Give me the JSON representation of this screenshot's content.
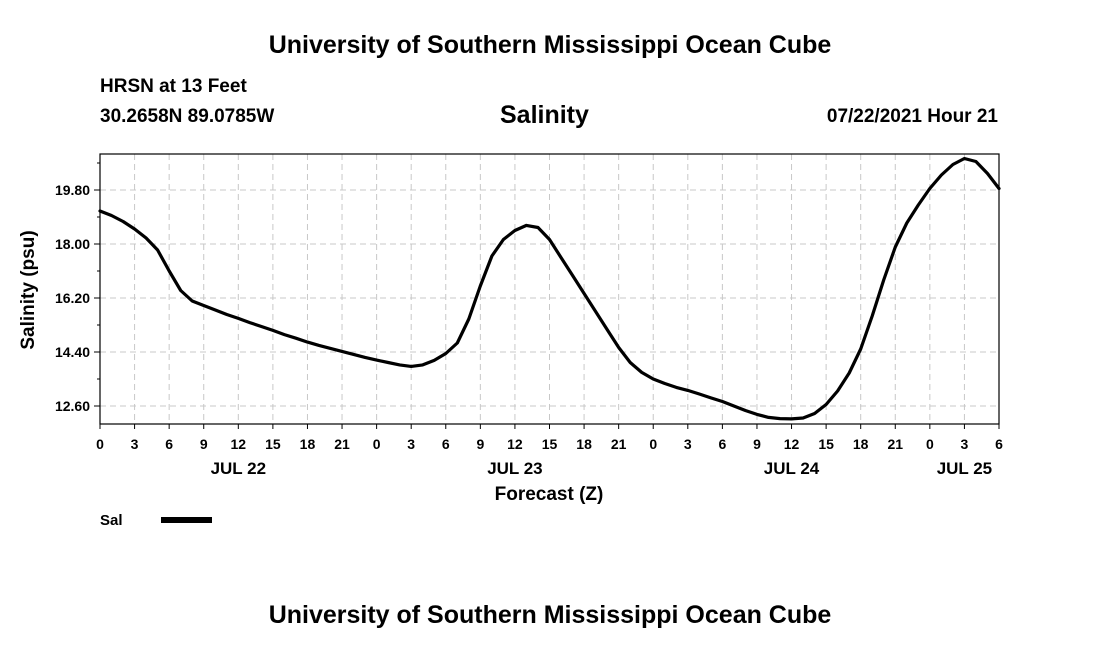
{
  "header": {
    "title": "University of Southern Mississippi Ocean Cube",
    "station": "HRSN at 13 Feet",
    "coords": "30.2658N  89.0785W",
    "datetime": "07/22/2021 Hour 21"
  },
  "footer": {
    "title": "University of Southern Mississippi Ocean Cube"
  },
  "legend": {
    "label": "Sal"
  },
  "colors": {
    "line": "#000000",
    "grid": "#c8c8c8",
    "axis": "#000000"
  },
  "chart_data": {
    "type": "line",
    "title": "Salinity",
    "xlabel": "Forecast (Z)",
    "ylabel": "Salinity (psu)",
    "xlim": [
      0,
      78
    ],
    "ylim": [
      12.0,
      21.0
    ],
    "x_ticks": [
      0,
      3,
      6,
      9,
      12,
      15,
      18,
      21,
      24,
      27,
      30,
      33,
      36,
      39,
      42,
      45,
      48,
      51,
      54,
      57,
      60,
      63,
      66,
      69,
      72,
      75,
      78
    ],
    "x_tick_labels": [
      "0",
      "3",
      "6",
      "9",
      "12",
      "15",
      "18",
      "21",
      "0",
      "3",
      "6",
      "9",
      "12",
      "15",
      "18",
      "21",
      "0",
      "3",
      "6",
      "9",
      "12",
      "15",
      "18",
      "21",
      "0",
      "3",
      "6"
    ],
    "day_labels": [
      {
        "x": 12,
        "label": "JUL 22"
      },
      {
        "x": 36,
        "label": "JUL 23"
      },
      {
        "x": 60,
        "label": "JUL 24"
      },
      {
        "x": 75,
        "label": "JUL 25"
      }
    ],
    "y_ticks": [
      12.6,
      14.4,
      16.2,
      18.0,
      19.8
    ],
    "y_tick_labels": [
      "12.60",
      "14.40",
      "16.20",
      "18.00",
      "19.80"
    ],
    "series": [
      {
        "name": "Sal",
        "x": [
          0,
          1,
          2,
          3,
          4,
          5,
          6,
          7,
          8,
          9,
          10,
          11,
          12,
          13,
          14,
          15,
          16,
          17,
          18,
          19,
          20,
          21,
          22,
          23,
          24,
          25,
          26,
          27,
          28,
          29,
          30,
          31,
          32,
          33,
          34,
          35,
          36,
          37,
          38,
          39,
          40,
          41,
          42,
          43,
          44,
          45,
          46,
          47,
          48,
          49,
          50,
          51,
          52,
          53,
          54,
          55,
          56,
          57,
          58,
          59,
          60,
          61,
          62,
          63,
          64,
          65,
          66,
          67,
          68,
          69,
          70,
          71,
          72,
          73,
          74,
          75,
          76,
          77,
          78
        ],
        "values": [
          19.1,
          18.95,
          18.75,
          18.5,
          18.2,
          17.8,
          17.1,
          16.45,
          16.1,
          15.95,
          15.8,
          15.65,
          15.52,
          15.38,
          15.25,
          15.12,
          14.98,
          14.86,
          14.73,
          14.62,
          14.52,
          14.42,
          14.32,
          14.22,
          14.13,
          14.05,
          13.97,
          13.92,
          13.97,
          14.12,
          14.35,
          14.7,
          15.5,
          16.6,
          17.6,
          18.15,
          18.45,
          18.62,
          18.55,
          18.15,
          17.55,
          16.95,
          16.35,
          15.75,
          15.15,
          14.55,
          14.05,
          13.72,
          13.5,
          13.35,
          13.22,
          13.12,
          13.0,
          12.87,
          12.75,
          12.6,
          12.45,
          12.32,
          12.22,
          12.18,
          12.17,
          12.2,
          12.35,
          12.65,
          13.1,
          13.7,
          14.5,
          15.6,
          16.8,
          17.9,
          18.7,
          19.3,
          19.85,
          20.3,
          20.65,
          20.85,
          20.75,
          20.35,
          19.85
        ]
      }
    ]
  }
}
